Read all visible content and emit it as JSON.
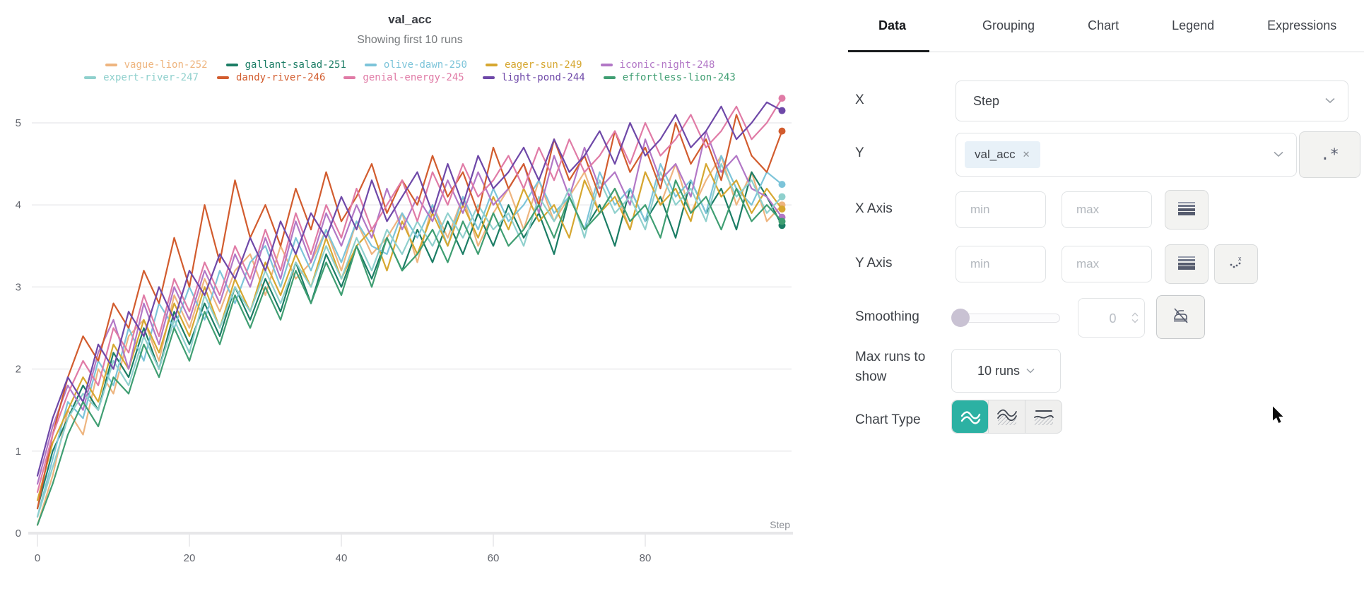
{
  "chart_data": {
    "type": "line",
    "title": "val_acc",
    "subtitle": "Showing first 10 runs",
    "xlabel": "Step",
    "ylabel": "",
    "xlim": [
      0,
      100
    ],
    "ylim": [
      0,
      5
    ],
    "x_step": 2,
    "x_ticks": [
      0,
      20,
      40,
      60,
      80
    ],
    "y_ticks": [
      0,
      1,
      2,
      3,
      4,
      5
    ],
    "grid": "horizontal",
    "legend_position": "top",
    "series": [
      {
        "name": "vague-lion-252",
        "color": "#eeb57f",
        "values": [
          0.1,
          0.7,
          1.5,
          1.2,
          2.0,
          1.7,
          2.4,
          2.6,
          2.1,
          2.9,
          2.5,
          3.1,
          2.7,
          3.2,
          3.4,
          2.9,
          3.5,
          3.1,
          3.3,
          3.7,
          3.2,
          3.8,
          3.4,
          3.6,
          3.9,
          3.3,
          4.0,
          3.6,
          4.1,
          3.5,
          3.9,
          4.2,
          3.7,
          4.3,
          3.8,
          4.1,
          4.4,
          3.9,
          4.2,
          3.7,
          4.4,
          4.0,
          4.5,
          3.9,
          4.3,
          4.6,
          4.0,
          4.4,
          3.8,
          4.0
        ]
      },
      {
        "name": "gallant-salad-251",
        "color": "#1b7d65",
        "values": [
          0.3,
          1.0,
          1.4,
          1.8,
          1.5,
          2.2,
          1.9,
          2.5,
          2.0,
          2.7,
          2.3,
          2.8,
          2.4,
          3.0,
          2.6,
          3.1,
          2.7,
          3.3,
          2.8,
          3.4,
          3.0,
          3.5,
          3.1,
          3.6,
          3.2,
          3.7,
          3.3,
          3.8,
          3.4,
          3.9,
          3.5,
          4.0,
          3.6,
          3.9,
          3.4,
          4.1,
          3.7,
          4.0,
          3.5,
          4.2,
          3.8,
          4.1,
          3.6,
          4.3,
          3.9,
          4.2,
          3.7,
          4.4,
          4.1,
          3.75
        ]
      },
      {
        "name": "olive-dawn-250",
        "color": "#7cc4d9",
        "values": [
          0.2,
          0.9,
          1.6,
          1.4,
          2.1,
          1.8,
          2.5,
          2.1,
          2.8,
          2.5,
          3.0,
          2.6,
          3.2,
          2.8,
          3.3,
          3.5,
          3.0,
          3.6,
          3.2,
          3.7,
          3.3,
          3.8,
          3.5,
          3.4,
          3.9,
          3.6,
          4.0,
          3.5,
          4.1,
          3.7,
          4.2,
          3.8,
          4.0,
          4.3,
          3.9,
          4.1,
          3.7,
          4.4,
          4.0,
          4.2,
          3.8,
          4.5,
          4.1,
          4.3,
          3.9,
          4.6,
          4.2,
          4.0,
          4.4,
          4.25
        ]
      },
      {
        "name": "eager-sun-249",
        "color": "#d6a730",
        "values": [
          0.4,
          1.1,
          1.5,
          1.9,
          1.6,
          2.3,
          2.0,
          2.6,
          2.2,
          2.8,
          2.4,
          3.0,
          2.5,
          3.1,
          2.7,
          3.3,
          2.9,
          3.4,
          3.0,
          3.6,
          3.1,
          3.5,
          3.7,
          3.2,
          3.8,
          3.4,
          3.9,
          3.5,
          4.0,
          3.6,
          4.1,
          3.7,
          4.2,
          3.8,
          4.0,
          3.6,
          4.3,
          3.9,
          4.1,
          3.7,
          4.4,
          4.0,
          4.2,
          3.8,
          4.5,
          4.1,
          4.3,
          3.9,
          4.2,
          3.95
        ]
      },
      {
        "name": "iconic-night-248",
        "color": "#b277c6",
        "values": [
          0.6,
          1.3,
          1.8,
          1.5,
          2.2,
          2.6,
          2.0,
          2.8,
          2.3,
          3.0,
          2.6,
          3.2,
          2.8,
          3.4,
          3.0,
          3.6,
          3.1,
          3.8,
          3.3,
          3.9,
          3.5,
          4.0,
          3.6,
          4.2,
          3.7,
          4.1,
          3.8,
          4.3,
          3.9,
          4.4,
          4.0,
          4.2,
          4.5,
          3.9,
          4.6,
          4.1,
          4.7,
          4.2,
          4.4,
          4.0,
          4.8,
          4.3,
          4.5,
          4.1,
          4.9,
          4.4,
          4.6,
          4.2,
          4.1,
          3.85
        ]
      },
      {
        "name": "expert-river-247",
        "color": "#8fd0cd",
        "values": [
          0.2,
          0.8,
          1.4,
          1.7,
          1.5,
          2.1,
          1.8,
          2.4,
          2.0,
          2.6,
          2.2,
          2.9,
          2.5,
          3.0,
          2.7,
          3.2,
          2.8,
          3.3,
          3.0,
          3.5,
          3.1,
          3.6,
          3.2,
          3.7,
          3.4,
          3.8,
          3.5,
          3.9,
          3.6,
          4.0,
          3.7,
          3.9,
          3.5,
          4.1,
          3.8,
          4.2,
          3.6,
          4.3,
          3.9,
          4.1,
          3.7,
          4.4,
          4.0,
          4.2,
          3.8,
          4.5,
          4.1,
          4.3,
          3.9,
          4.1
        ]
      },
      {
        "name": "dandy-river-246",
        "color": "#d25c2e",
        "values": [
          0.3,
          1.2,
          1.9,
          2.4,
          2.1,
          2.8,
          2.5,
          3.2,
          2.8,
          3.6,
          3.0,
          4.0,
          3.3,
          4.3,
          3.6,
          4.0,
          3.5,
          4.2,
          3.7,
          4.4,
          3.8,
          4.1,
          4.5,
          3.9,
          4.3,
          4.0,
          4.6,
          4.1,
          4.4,
          3.9,
          4.7,
          4.2,
          4.5,
          4.0,
          4.8,
          4.3,
          4.6,
          4.1,
          4.9,
          4.4,
          4.7,
          4.2,
          5.0,
          4.5,
          4.8,
          4.3,
          5.1,
          4.6,
          4.4,
          4.9
        ]
      },
      {
        "name": "genial-energy-245",
        "color": "#e07ba6",
        "values": [
          0.5,
          1.2,
          1.7,
          2.1,
          1.8,
          2.5,
          2.2,
          2.9,
          2.4,
          3.1,
          2.7,
          3.3,
          2.9,
          3.5,
          3.1,
          3.7,
          3.2,
          3.9,
          3.4,
          4.0,
          3.6,
          4.2,
          3.7,
          4.0,
          4.3,
          3.8,
          4.4,
          4.0,
          4.5,
          4.1,
          4.3,
          4.6,
          4.2,
          4.7,
          4.3,
          4.8,
          4.4,
          4.6,
          4.9,
          4.5,
          5.0,
          4.6,
          4.8,
          5.1,
          4.7,
          4.9,
          5.2,
          4.8,
          5.0,
          5.3
        ]
      },
      {
        "name": "light-pond-244",
        "color": "#6e48a8",
        "values": [
          0.7,
          1.4,
          1.9,
          1.6,
          2.3,
          2.0,
          2.7,
          2.4,
          3.0,
          2.6,
          3.2,
          2.9,
          3.4,
          3.1,
          3.6,
          3.2,
          3.8,
          3.4,
          3.9,
          3.6,
          4.1,
          3.7,
          4.3,
          3.8,
          4.1,
          4.4,
          3.9,
          4.5,
          4.0,
          4.6,
          4.2,
          4.4,
          4.7,
          4.3,
          4.8,
          4.4,
          4.6,
          4.9,
          4.5,
          5.0,
          4.6,
          4.8,
          5.1,
          4.7,
          4.9,
          5.2,
          4.8,
          5.0,
          5.25,
          5.15
        ]
      },
      {
        "name": "effortless-lion-243",
        "color": "#3f9e72",
        "values": [
          0.1,
          0.6,
          1.2,
          1.6,
          1.3,
          1.9,
          1.7,
          2.3,
          1.9,
          2.5,
          2.1,
          2.7,
          2.3,
          2.9,
          2.5,
          3.0,
          2.6,
          3.2,
          2.8,
          3.3,
          2.9,
          3.5,
          3.0,
          3.6,
          3.2,
          3.4,
          3.7,
          3.3,
          3.8,
          3.4,
          3.9,
          3.5,
          3.7,
          4.0,
          3.6,
          4.1,
          3.7,
          3.9,
          4.2,
          3.8,
          4.0,
          3.6,
          4.3,
          3.9,
          4.1,
          3.7,
          4.2,
          3.8,
          4.0,
          3.8
        ]
      }
    ]
  },
  "panel": {
    "tabs": [
      {
        "label": "Data",
        "active": true
      },
      {
        "label": "Grouping"
      },
      {
        "label": "Chart"
      },
      {
        "label": "Legend"
      },
      {
        "label": "Expressions"
      }
    ],
    "x_row": {
      "label": "X",
      "value": "Step"
    },
    "y_row": {
      "label": "Y",
      "tag": "val_acc",
      "remove_icon": "✕",
      "regex_label": ".*"
    },
    "x_axis": {
      "label": "X Axis",
      "min_placeholder": "min",
      "max_placeholder": "max"
    },
    "y_axis": {
      "label": "Y Axis",
      "min_placeholder": "min",
      "max_placeholder": "max"
    },
    "smoothing": {
      "label": "Smoothing",
      "value": "0"
    },
    "max_runs": {
      "label": "Max runs to show",
      "value": "10 runs"
    },
    "chart_type": {
      "label": "Chart Type"
    }
  },
  "colors": {
    "accent_teal": "#2cb1a3",
    "active_tab": "#1a1c1e",
    "icon_slate": "#565c6e",
    "pill_bg": "#e8f1f8",
    "slider_knob": "#c9c2d3"
  }
}
